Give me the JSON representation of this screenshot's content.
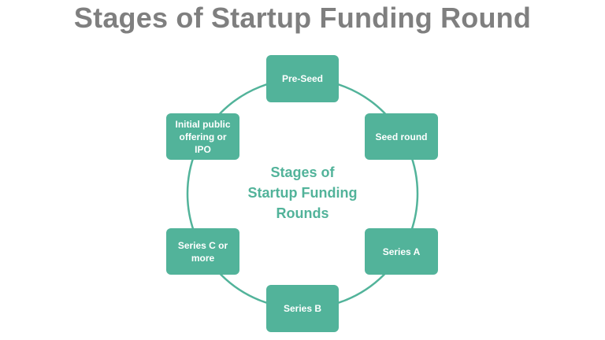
{
  "title": "Stages of Startup Funding Round",
  "center": {
    "line1": "Stages of",
    "line2": "Startup Funding",
    "line3": "Rounds"
  },
  "stages": {
    "pre_seed": "Pre-Seed",
    "seed_round": "Seed round",
    "series_a": "Series A",
    "series_b": "Series B",
    "series_c": "Series C or more",
    "ipo": "Initial public offering or IPO"
  },
  "colors": {
    "accent": "#52b39a",
    "title": "#7f7f7f",
    "background": "#ffffff"
  }
}
